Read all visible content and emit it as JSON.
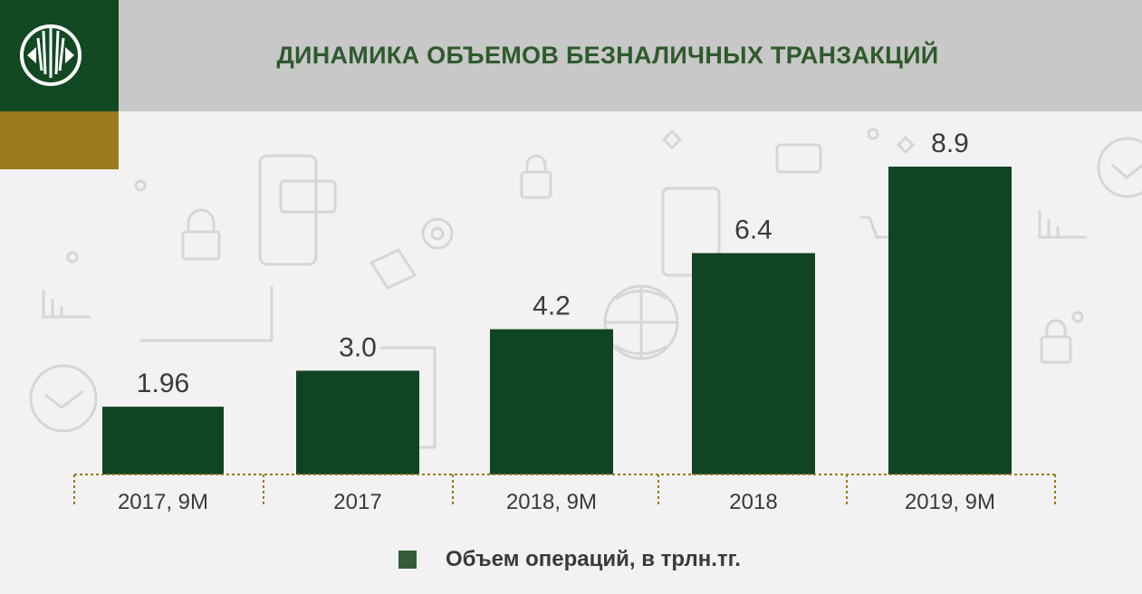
{
  "header": {
    "title": "ДИНАМИКА ОБЪЕМОВ БЕЗНАЛИЧНЫХ ТРАНЗАКЦИЙ",
    "brand_color": "#124822",
    "accent_color": "#9a7a1c"
  },
  "legend": {
    "label": "Объем операций, в трлн.тг."
  },
  "chart_data": {
    "type": "bar",
    "title": "ДИНАМИКА ОБЪЕМОВ БЕЗНАЛИЧНЫХ ТРАНЗАКЦИЙ",
    "categories": [
      "2017, 9М",
      "2017",
      "2018, 9М",
      "2018",
      "2019, 9М"
    ],
    "values": [
      1.96,
      3.0,
      4.2,
      6.4,
      8.9
    ],
    "value_labels": [
      "1.96",
      "3.0",
      "4.2",
      "6.4",
      "8.9"
    ],
    "series": [
      {
        "name": "Объем операций, в трлн.тг.",
        "values": [
          1.96,
          3.0,
          4.2,
          6.4,
          8.9
        ]
      }
    ],
    "ylim": [
      0,
      10
    ],
    "xlabel": "",
    "ylabel": "",
    "grid": false,
    "legend_position": "bottom",
    "bar_color": "#114423"
  }
}
